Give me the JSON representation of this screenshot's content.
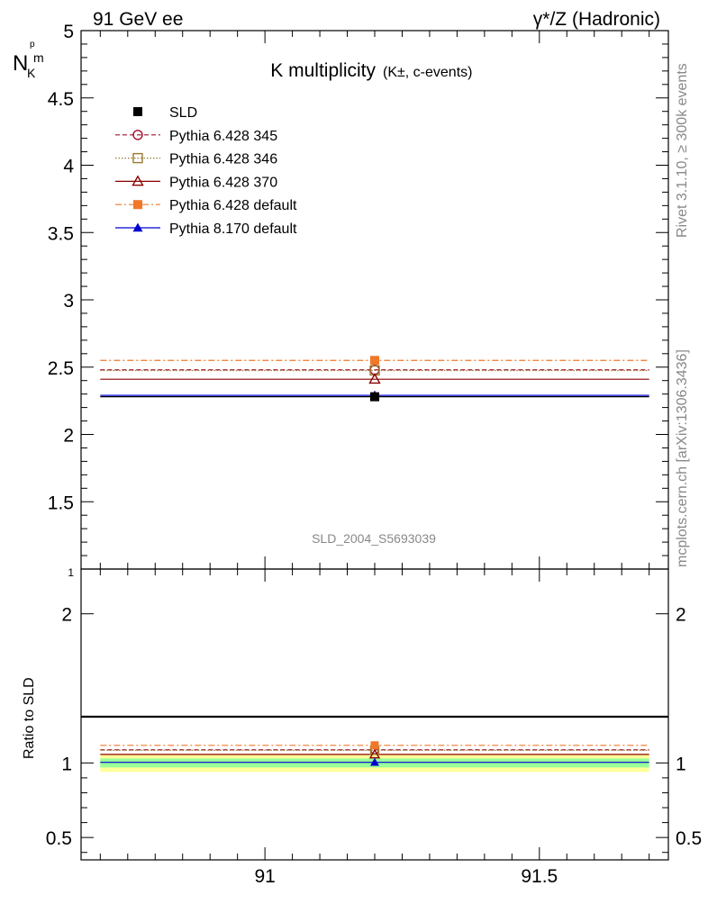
{
  "header": {
    "left": "91 GeV ee",
    "right": "γ*/Z (Hadronic)"
  },
  "side_labels": {
    "rivet": "Rivet 3.1.10, ≥ 300k events",
    "mcplots": "mcplots.cern.ch [arXiv:1306.3436]"
  },
  "chart_data": [
    {
      "type": "scatter",
      "title": "K multiplicity",
      "title_suffix": "(K±, c-events)",
      "ylabel_main": "N",
      "ylabel_sub": "K",
      "ylabel_sup": "p",
      "ylabel_sub2": "m",
      "watermark": "SLD_2004_S5693039",
      "xlim": [
        90.665,
        91.735
      ],
      "ylim": [
        1.0,
        5.0
      ],
      "x_ticks": [
        "91",
        "91.5"
      ],
      "y_ticks": [
        "1",
        "1.5",
        "2",
        "2.5",
        "3",
        "3.5",
        "4",
        "4.5",
        "5"
      ],
      "legend_position": "top-left",
      "series": [
        {
          "name": "SLD",
          "x": 91.2,
          "y": 2.28,
          "xerr": [
            90.7,
            91.7
          ],
          "color": "#000000",
          "marker": "square-filled",
          "line": "none"
        },
        {
          "name": "Pythia 6.428 345",
          "x": 91.2,
          "y": 2.48,
          "color": "#a01030",
          "marker": "circle-open",
          "line": "dashed"
        },
        {
          "name": "Pythia 6.428 346",
          "x": 91.2,
          "y": 2.475,
          "color": "#9a7a30",
          "marker": "square-open",
          "line": "dotted"
        },
        {
          "name": "Pythia 6.428 370",
          "x": 91.2,
          "y": 2.41,
          "color": "#8b0000",
          "marker": "triangle-open",
          "line": "solid"
        },
        {
          "name": "Pythia 6.428 default",
          "x": 91.2,
          "y": 2.55,
          "color": "#f07828",
          "marker": "square-filled",
          "line": "dashdot"
        },
        {
          "name": "Pythia 8.170 default",
          "x": 91.2,
          "y": 2.29,
          "color": "#0000d0",
          "marker": "triangle-filled",
          "line": "solid"
        }
      ]
    },
    {
      "type": "scatter",
      "ylabel": "Ratio to SLD",
      "xlim": [
        90.665,
        91.735
      ],
      "ylim": [
        0.35,
        2.3
      ],
      "x_ticks": [
        "91",
        "91.5"
      ],
      "y_ticks": [
        "0.5",
        "1",
        "2"
      ],
      "uncertainty_bands": [
        {
          "low": 0.94,
          "high": 1.06,
          "color": "#ffff99"
        },
        {
          "low": 0.97,
          "high": 1.03,
          "color": "#99ff99"
        }
      ],
      "series": [
        {
          "name": "Pythia 6.428 345",
          "x": 91.2,
          "y": 1.088,
          "color": "#a01030",
          "marker": "circle-open",
          "line": "dashed"
        },
        {
          "name": "Pythia 6.428 346",
          "x": 91.2,
          "y": 1.085,
          "color": "#9a7a30",
          "marker": "square-open",
          "line": "dotted"
        },
        {
          "name": "Pythia 6.428 370",
          "x": 91.2,
          "y": 1.057,
          "color": "#8b0000",
          "marker": "triangle-open",
          "line": "solid"
        },
        {
          "name": "Pythia 6.428 default",
          "x": 91.2,
          "y": 1.118,
          "color": "#f07828",
          "marker": "square-filled",
          "line": "dashdot"
        },
        {
          "name": "Pythia 8.170 default",
          "x": 91.2,
          "y": 1.004,
          "color": "#0000d0",
          "marker": "triangle-filled",
          "line": "solid"
        }
      ]
    }
  ]
}
